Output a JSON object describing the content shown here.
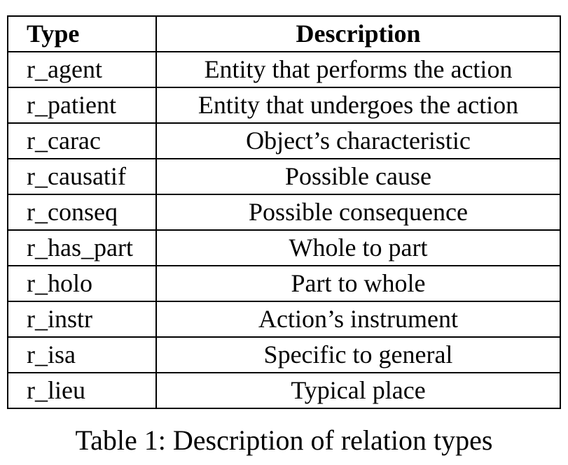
{
  "table": {
    "headers": {
      "type": "Type",
      "description": "Description"
    },
    "rows": [
      {
        "type": "r_agent",
        "description": "Entity that performs the action"
      },
      {
        "type": "r_patient",
        "description": "Entity that undergoes the action"
      },
      {
        "type": "r_carac",
        "description": "Object’s characteristic"
      },
      {
        "type": "r_causatif",
        "description": "Possible cause"
      },
      {
        "type": "r_conseq",
        "description": "Possible consequence"
      },
      {
        "type": "r_has_part",
        "description": "Whole to part"
      },
      {
        "type": "r_holo",
        "description": "Part to whole"
      },
      {
        "type": "r_instr",
        "description": "Action’s instrument"
      },
      {
        "type": "r_isa",
        "description": "Specific to general"
      },
      {
        "type": "r_lieu",
        "description": "Typical place"
      }
    ]
  },
  "caption": "Table 1: Description of relation types"
}
